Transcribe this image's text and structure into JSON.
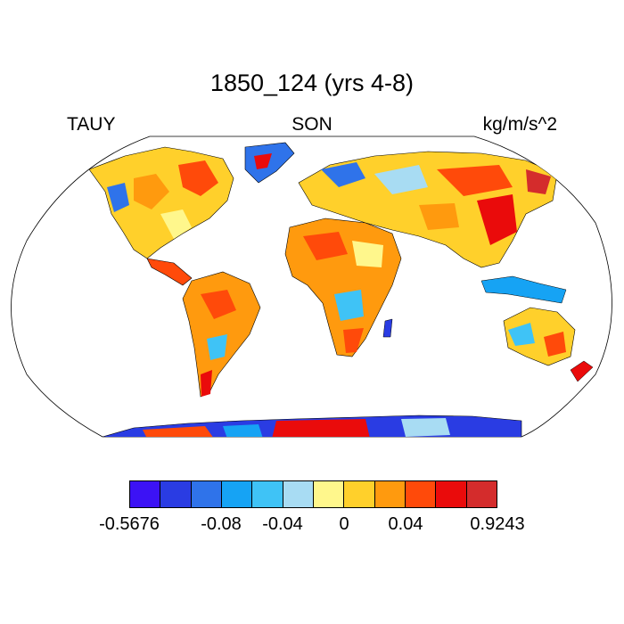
{
  "title": "1850_124 (yrs 4-8)",
  "left_label": "TAUY",
  "center_label": "SON",
  "right_label": "kg/m/s^2",
  "projection": "Robinson (global)",
  "colorbar": {
    "colors": [
      "#3c12f5",
      "#2a3ce3",
      "#2f73ea",
      "#16a3f4",
      "#3fc3f6",
      "#a8dcf3",
      "#fff78c",
      "#ffd02b",
      "#ff9a0e",
      "#ff4a0a",
      "#ea0b0b",
      "#d42c2c"
    ],
    "tick_labels": [
      "-0.5676",
      "-0.08",
      "-0.04",
      "0",
      "0.04",
      "0.9243"
    ]
  }
}
